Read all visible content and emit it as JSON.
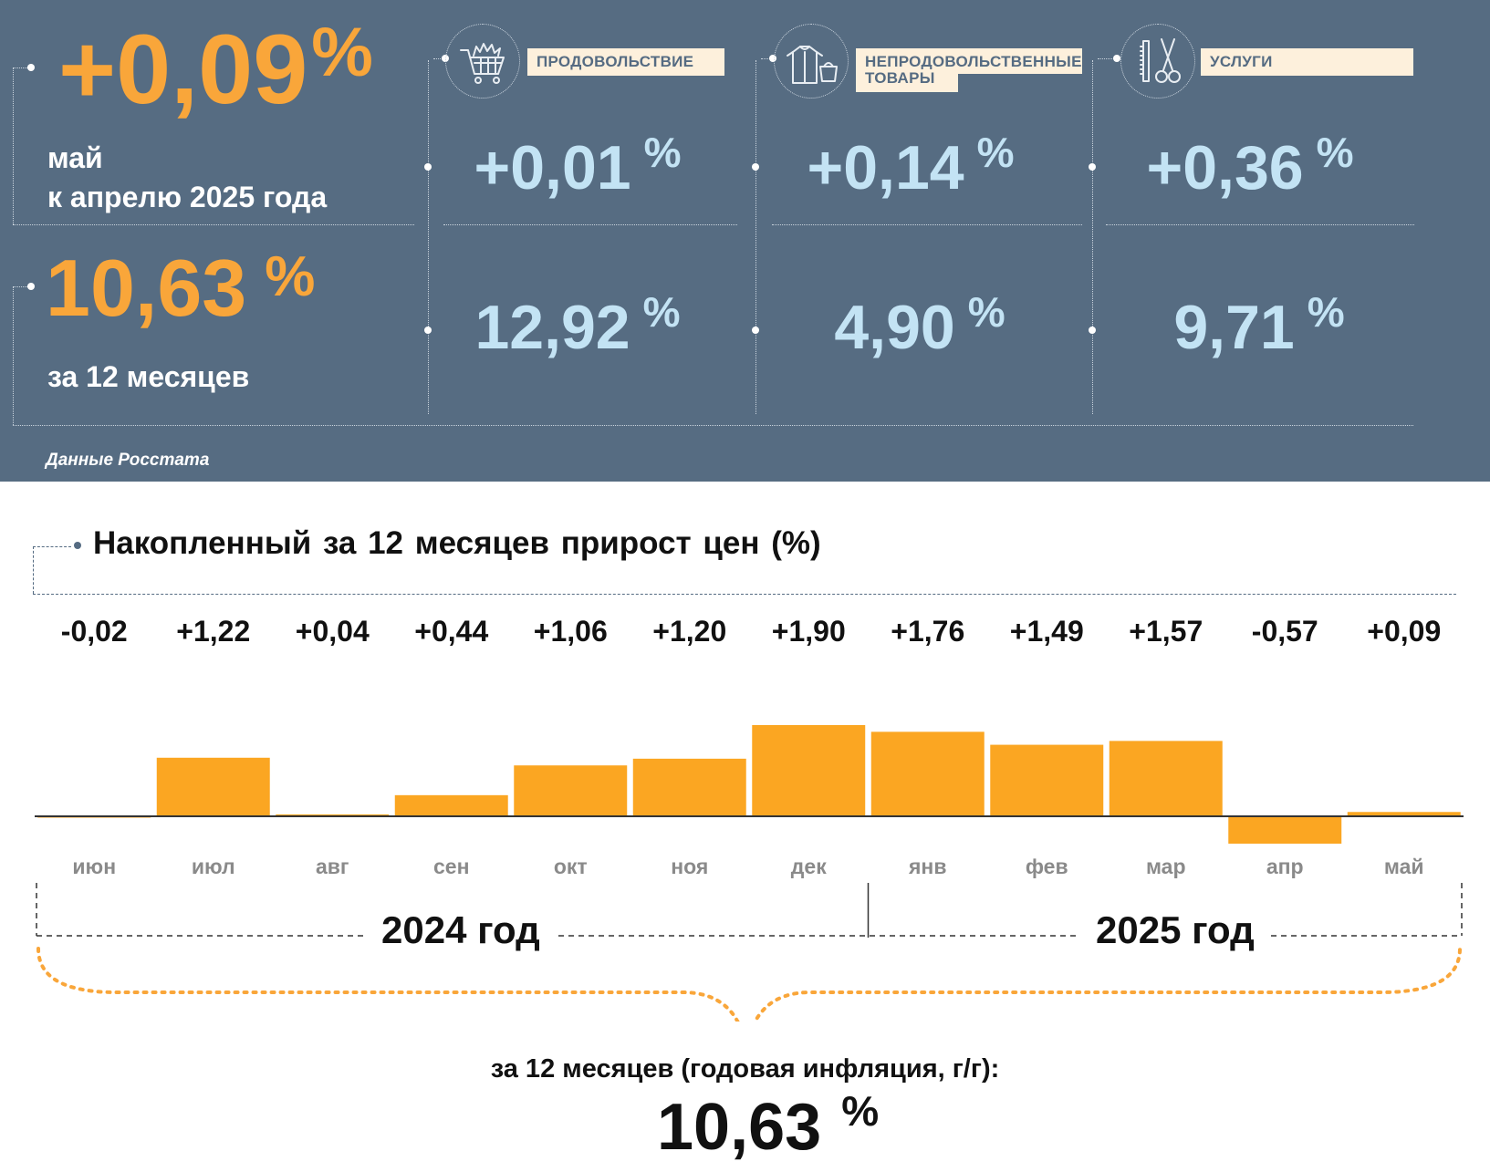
{
  "summary": {
    "monthly_value": "+0,09",
    "monthly_unit": "%",
    "monthly_label_line1": "май",
    "monthly_label_line2": "к апрелю 2025 года",
    "annual_value": "10,63",
    "annual_unit": "%",
    "annual_label": "за 12 месяцев",
    "source": "Данные Росстата"
  },
  "categories": [
    {
      "name": "ПРОДОВОЛЬСТВИЕ",
      "icon": "shopping-cart-icon",
      "monthly": "+0,01",
      "annual": "12,92",
      "unit": "%"
    },
    {
      "name_line1": "НЕПРОДОВОЛЬСТВЕННЫЕ",
      "name_line2": "ТОВАРЫ",
      "icon": "clothing-icon",
      "monthly": "+0,14",
      "annual": "4,90",
      "unit": "%"
    },
    {
      "name": "УСЛУГИ",
      "icon": "scissors-comb-icon",
      "monthly": "+0,36",
      "annual": "9,71",
      "unit": "%"
    }
  ],
  "colors": {
    "panel_bg": "#566c82",
    "accent_orange": "#f9a63a",
    "value_light_blue": "#c3e3f4",
    "tag_bg": "#fdf0dc",
    "bar": "#fba622"
  },
  "chart_data": {
    "type": "bar",
    "title": "Накопленный за 12 месяцев прирост цен (%)",
    "categories": [
      "июн",
      "июл",
      "авг",
      "сен",
      "окт",
      "ноя",
      "дек",
      "янв",
      "фев",
      "мар",
      "апр",
      "май"
    ],
    "values": [
      -0.02,
      1.22,
      0.04,
      0.44,
      1.06,
      1.2,
      1.9,
      1.76,
      1.49,
      1.57,
      -0.57,
      0.09
    ],
    "value_labels": [
      "-0,02",
      "+1,22",
      "+0,04",
      "+0,44",
      "+1,06",
      "+1,20",
      "+1,90",
      "+1,76",
      "+1,49",
      "+1,57",
      "-0,57",
      "+0,09"
    ],
    "years": [
      {
        "label": "2024 год",
        "months": 7
      },
      {
        "label": "2025 год",
        "months": 5
      }
    ],
    "grid": false
  },
  "annual_summary": {
    "caption": "за 12 месяцев (годовая инфляция, г/г):",
    "value": "10,63",
    "unit": "%"
  }
}
